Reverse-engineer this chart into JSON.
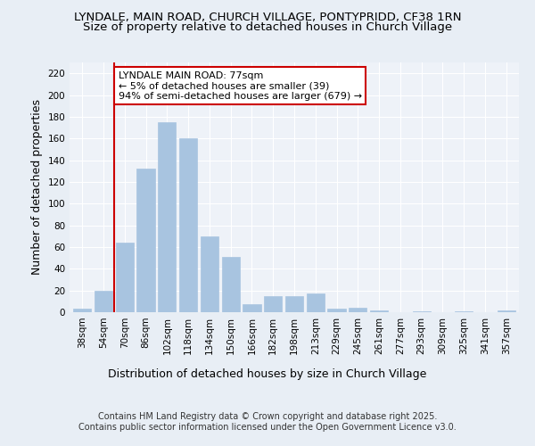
{
  "title1": "LYNDALE, MAIN ROAD, CHURCH VILLAGE, PONTYPRIDD, CF38 1RN",
  "title2": "Size of property relative to detached houses in Church Village",
  "xlabel": "Distribution of detached houses by size in Church Village",
  "ylabel": "Number of detached properties",
  "categories": [
    "38sqm",
    "54sqm",
    "70sqm",
    "86sqm",
    "102sqm",
    "118sqm",
    "134sqm",
    "150sqm",
    "166sqm",
    "182sqm",
    "198sqm",
    "213sqm",
    "229sqm",
    "245sqm",
    "261sqm",
    "277sqm",
    "293sqm",
    "309sqm",
    "325sqm",
    "341sqm",
    "357sqm"
  ],
  "values": [
    3,
    20,
    64,
    132,
    175,
    160,
    70,
    51,
    7,
    15,
    15,
    17,
    3,
    4,
    2,
    0,
    1,
    0,
    1,
    0,
    2
  ],
  "bar_color": "#a8c4e0",
  "bar_edge_color": "#a8c4e0",
  "vline_x": 1.5,
  "vline_color": "#cc0000",
  "annotation_text": "LYNDALE MAIN ROAD: 77sqm\n← 5% of detached houses are smaller (39)\n94% of semi-detached houses are larger (679) →",
  "annotation_box_color": "white",
  "annotation_box_edge_color": "#cc0000",
  "ylim": [
    0,
    230
  ],
  "yticks": [
    0,
    20,
    40,
    60,
    80,
    100,
    120,
    140,
    160,
    180,
    200,
    220
  ],
  "bg_color": "#e8eef5",
  "plot_bg_color": "#eef2f8",
  "footer": "Contains HM Land Registry data © Crown copyright and database right 2025.\nContains public sector information licensed under the Open Government Licence v3.0.",
  "title_fontsize": 9.5,
  "subtitle_fontsize": 9.5,
  "tick_fontsize": 7.5,
  "ylabel_fontsize": 9,
  "xlabel_fontsize": 9,
  "annotation_fontsize": 8,
  "footer_fontsize": 7
}
